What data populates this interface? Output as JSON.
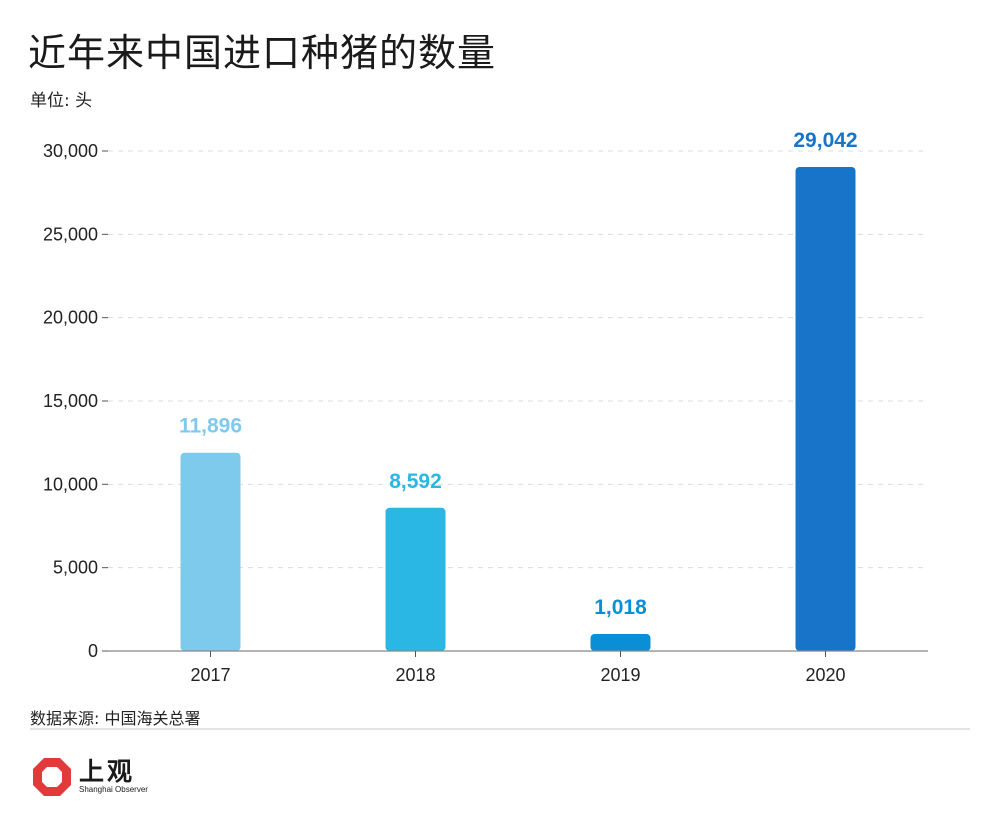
{
  "header": {
    "title": "近年来中国进口种猪的数量",
    "unit": "单位: 头"
  },
  "chart_data": {
    "type": "bar",
    "categories": [
      "2017",
      "2018",
      "2019",
      "2020"
    ],
    "values": [
      11896,
      8592,
      1018,
      29042
    ],
    "value_labels": [
      "11,896",
      "8,592",
      "1,018",
      "29,042"
    ],
    "colors": [
      "#7ecaed",
      "#2bb7e3",
      "#0a8fd6",
      "#1874c9"
    ],
    "y_ticks": [
      0,
      5000,
      10000,
      15000,
      20000,
      25000,
      30000
    ],
    "y_tick_labels": [
      "0",
      "5,000",
      "10,000",
      "15,000",
      "20,000",
      "25,000",
      "30,000"
    ],
    "ylim": [
      0,
      30000
    ],
    "grid": true,
    "title": "近年来中国进口种猪的数量",
    "xlabel": "",
    "ylabel": ""
  },
  "footer": {
    "source": "数据来源: 中国海关总署",
    "logo_text": "上观",
    "logo_subtext": "Shanghai Observer",
    "logo_color": "#e03a3a"
  }
}
